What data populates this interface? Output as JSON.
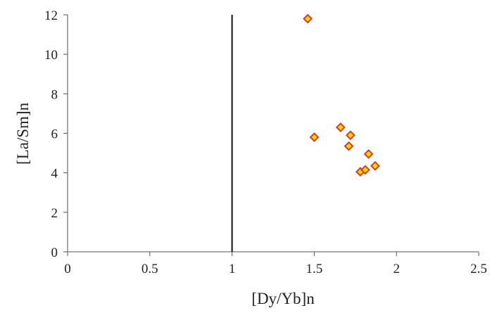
{
  "chart_data": {
    "type": "scatter",
    "title": "",
    "xlabel": "[Dy/Yb]n",
    "ylabel": "[La/Sm]n",
    "xlim": [
      0,
      2.5
    ],
    "ylim": [
      0,
      12
    ],
    "x_ticks": [
      "0",
      "0.5",
      "1",
      "1.5",
      "2",
      "2.5"
    ],
    "y_ticks": [
      "0",
      "2",
      "4",
      "6",
      "8",
      "10",
      "12"
    ],
    "grid": false,
    "reference_line_x": 1,
    "marker": {
      "shape": "diamond",
      "fill": "#FFD700",
      "stroke": "#D53E1F"
    },
    "series": [
      {
        "points": [
          {
            "x": 1.46,
            "y": 11.8
          },
          {
            "x": 1.5,
            "y": 5.8
          },
          {
            "x": 1.66,
            "y": 6.3
          },
          {
            "x": 1.72,
            "y": 5.9
          },
          {
            "x": 1.71,
            "y": 5.35
          },
          {
            "x": 1.83,
            "y": 4.95
          },
          {
            "x": 1.87,
            "y": 4.35
          },
          {
            "x": 1.78,
            "y": 4.05
          },
          {
            "x": 1.81,
            "y": 4.15
          }
        ]
      }
    ]
  }
}
